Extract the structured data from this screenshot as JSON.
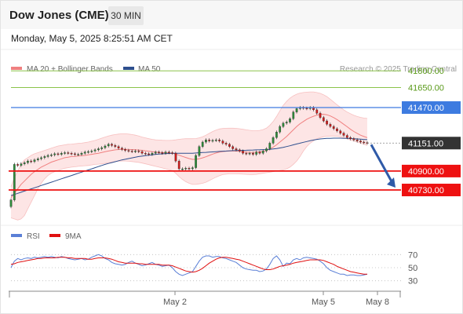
{
  "header": {
    "title": "Dow Jones (CME)",
    "timeframe": "30 MIN",
    "timestamp": "Monday, May 5, 2025 8:25:51 AM CET"
  },
  "colors": {
    "bollinger": "#f08080",
    "bollinger_fill": "#fde0e0",
    "ma50": "#2e4f8e",
    "resistance": "#8bc34a",
    "pivot": "#3d7be0",
    "support": "#ee1111",
    "last_price": "#333333",
    "arrow": "#2f5aa8",
    "rsi": "#5a7fd6",
    "rsi_ma": "#e01010",
    "candle_up": "#2e8b3a",
    "candle_down": "#d01b1b"
  },
  "chart_data": [
    {
      "type": "candlestick",
      "legend": [
        {
          "label": "MA 20 + Bollinger Bands",
          "color": "#f08080"
        },
        {
          "label": "MA 50",
          "color": "#2e4f8e"
        }
      ],
      "source": "Research © 2025 Trading Central",
      "ylim": [
        40420,
        41900
      ],
      "levels": [
        {
          "label": "41800.00",
          "value": 41800,
          "kind": "resistance"
        },
        {
          "label": "41650.00",
          "value": 41650,
          "kind": "resistance"
        },
        {
          "label": "41470.00",
          "value": 41470,
          "kind": "pivot"
        },
        {
          "label": "41151.00",
          "value": 41151,
          "kind": "last"
        },
        {
          "label": "40900.00",
          "value": 40900,
          "kind": "support"
        },
        {
          "label": "40730.00",
          "value": 40730,
          "kind": "support"
        }
      ],
      "x_ticks": [
        "May 2",
        "May 5",
        "May 8"
      ],
      "close_series": [
        40640,
        40960,
        40950,
        40965,
        40975,
        40990,
        40985,
        41000,
        41010,
        41020,
        41030,
        41040,
        41045,
        41055,
        41050,
        41060,
        41065,
        41060,
        41055,
        41050,
        41050,
        41060,
        41070,
        41075,
        41080,
        41090,
        41100,
        41110,
        41125,
        41140,
        41130,
        41120,
        41105,
        41095,
        41085,
        41080,
        41075,
        41080,
        41075,
        41060,
        41055,
        41050,
        41060,
        41070,
        41065,
        41060,
        41070,
        41065,
        41060,
        40990,
        40920,
        40920,
        40925,
        40920,
        40930,
        41040,
        41120,
        41160,
        41180,
        41170,
        41175,
        41180,
        41170,
        41150,
        41140,
        41120,
        41100,
        41090,
        41080,
        41060,
        41055,
        41060,
        41050,
        41070,
        41060,
        41080,
        41100,
        41150,
        41200,
        41250,
        41300,
        41330,
        41340,
        41370,
        41430,
        41460,
        41470,
        41465,
        41460,
        41470,
        41450,
        41420,
        41380,
        41350,
        41320,
        41300,
        41280,
        41260,
        41240,
        41220,
        41200,
        41190,
        41180,
        41170,
        41160,
        41155,
        41151
      ],
      "ma20_series": [
        40660,
        40700,
        40740,
        40780,
        40810,
        40840,
        40870,
        40895,
        40915,
        40935,
        40950,
        40965,
        40980,
        40990,
        41000,
        41010,
        41020,
        41025,
        41030,
        41032,
        41035,
        41038,
        41040,
        41045,
        41050,
        41055,
        41060,
        41066,
        41073,
        41080,
        41085,
        41090,
        41093,
        41095,
        41095,
        41094,
        41093,
        41091,
        41089,
        41086,
        41082,
        41078,
        41074,
        41071,
        41068,
        41066,
        41064,
        41062,
        41060,
        41052,
        41042,
        41032,
        41022,
        41012,
        41005,
        41005,
        41010,
        41018,
        41028,
        41040,
        41052,
        41062,
        41070,
        41075,
        41078,
        41080,
        41080,
        41079,
        41077,
        41074,
        41070,
        41068,
        41067,
        41069,
        41072,
        41076,
        41084,
        41098,
        41115,
        41135,
        41160,
        41185,
        41210,
        41240,
        41270,
        41300,
        41325,
        41345,
        41365,
        41380,
        41392,
        41402,
        41408,
        41410,
        41405,
        41395,
        41380,
        41362,
        41342,
        41320,
        41298,
        41275,
        41255,
        41238,
        41222,
        41210,
        41200
      ],
      "upper_band": [
        40760,
        40840,
        40900,
        40960,
        41000,
        41020,
        41040,
        41055,
        41065,
        41075,
        41085,
        41095,
        41105,
        41115,
        41125,
        41130,
        41135,
        41140,
        41142,
        41145,
        41148,
        41150,
        41155,
        41160,
        41168,
        41175,
        41185,
        41195,
        41205,
        41215,
        41222,
        41228,
        41232,
        41235,
        41235,
        41232,
        41228,
        41222,
        41215,
        41205,
        41198,
        41190,
        41185,
        41180,
        41178,
        41176,
        41175,
        41175,
        41176,
        41180,
        41185,
        41188,
        41190,
        41190,
        41190,
        41192,
        41198,
        41208,
        41222,
        41238,
        41255,
        41268,
        41278,
        41282,
        41284,
        41285,
        41285,
        41283,
        41280,
        41275,
        41270,
        41266,
        41262,
        41262,
        41265,
        41272,
        41285,
        41310,
        41345,
        41390,
        41440,
        41490,
        41525,
        41555,
        41575,
        41590,
        41600,
        41605,
        41608,
        41610,
        41610,
        41605,
        41598,
        41585,
        41568,
        41545,
        41520,
        41495,
        41472,
        41450,
        41430,
        41415,
        41400,
        41390,
        41382,
        41376,
        41372
      ],
      "lower_band": [
        40480,
        40470,
        40460,
        40470,
        40500,
        40560,
        40620,
        40680,
        40740,
        40790,
        40830,
        40860,
        40880,
        40895,
        40905,
        40915,
        40925,
        40930,
        40935,
        40938,
        40942,
        40945,
        40948,
        40950,
        40955,
        40960,
        40962,
        40965,
        40970,
        40975,
        40980,
        40985,
        40988,
        40990,
        40990,
        40988,
        40985,
        40982,
        40978,
        40972,
        40965,
        40958,
        40950,
        40942,
        40935,
        40928,
        40920,
        40912,
        40905,
        40880,
        40850,
        40825,
        40805,
        40790,
        40780,
        40780,
        40785,
        40790,
        40800,
        40815,
        40830,
        40845,
        40858,
        40868,
        40872,
        40875,
        40875,
        40875,
        40874,
        40872,
        40870,
        40868,
        40868,
        40870,
        40875,
        40880,
        40885,
        40890,
        40895,
        40900,
        40905,
        40910,
        40920,
        40935,
        40960,
        40990,
        41030,
        41080,
        41120,
        41150,
        41170,
        41190,
        41200,
        41208,
        41212,
        41214,
        41214,
        41212,
        41208,
        41200,
        41190,
        41180,
        41170,
        41160,
        41150,
        41140,
        41130
      ],
      "ma50_series": [
        40680,
        40690,
        40700,
        40710,
        40720,
        40730,
        40740,
        40750,
        40760,
        40770,
        40780,
        40790,
        40800,
        40810,
        40820,
        40830,
        40840,
        40850,
        40860,
        40870,
        40880,
        40890,
        40900,
        40910,
        40920,
        40930,
        40940,
        40950,
        40960,
        40968,
        40976,
        40984,
        40992,
        41000,
        41006,
        41012,
        41018,
        41024,
        41030,
        41034,
        41038,
        41042,
        41046,
        41050,
        41052,
        41054,
        41056,
        41058,
        41060,
        41060,
        41060,
        41060,
        41060,
        41060,
        41060,
        41062,
        41064,
        41066,
        41068,
        41070,
        41072,
        41074,
        41076,
        41078,
        41080,
        41082,
        41083,
        41084,
        41085,
        41086,
        41087,
        41088,
        41089,
        41090,
        41091,
        41092,
        41093,
        41095,
        41098,
        41102,
        41107,
        41113,
        41120,
        41127,
        41135,
        41143,
        41150,
        41158,
        41165,
        41172,
        41178,
        41184,
        41188,
        41191,
        41193,
        41194,
        41195,
        41195,
        41195,
        41194,
        41193,
        41192,
        41190,
        41188,
        41186,
        41184,
        41182
      ]
    },
    {
      "type": "line",
      "legend": [
        {
          "label": "RSI",
          "color": "#5a7fd6"
        },
        {
          "label": "9MA",
          "color": "#e01010"
        }
      ],
      "ylim": [
        20,
        80
      ],
      "levels": [
        {
          "label": "70",
          "value": 70
        },
        {
          "label": "50",
          "value": 50
        },
        {
          "label": "30",
          "value": 30
        }
      ],
      "rsi_series": [
        50,
        60,
        64,
        62,
        64,
        65,
        64,
        66,
        65,
        66,
        67,
        66,
        67,
        66,
        65,
        67,
        66,
        64,
        63,
        62,
        63,
        64,
        62,
        63,
        66,
        68,
        70,
        68,
        64,
        62,
        58,
        56,
        55,
        54,
        55,
        58,
        60,
        57,
        55,
        53,
        54,
        56,
        58,
        55,
        54,
        52,
        53,
        54,
        50,
        44,
        40,
        38,
        40,
        42,
        44,
        52,
        60,
        66,
        68,
        68,
        66,
        67,
        67,
        65,
        64,
        62,
        60,
        58,
        54,
        50,
        48,
        47,
        46,
        46,
        44,
        45,
        48,
        55,
        64,
        68,
        62,
        52,
        57,
        56,
        62,
        64,
        62,
        65,
        66,
        65,
        64,
        63,
        60,
        56,
        50,
        46,
        44,
        42,
        40,
        40,
        38,
        39,
        39,
        38,
        38,
        39,
        40
      ],
      "rsi_ma_series": [
        55,
        56,
        58,
        59,
        60,
        61,
        62,
        63,
        64,
        64,
        65,
        65,
        65,
        65,
        66,
        66,
        66,
        65,
        65,
        64,
        64,
        64,
        64,
        63,
        63,
        64,
        65,
        65,
        65,
        64,
        63,
        61,
        59,
        58,
        57,
        57,
        57,
        57,
        56,
        56,
        55,
        55,
        55,
        55,
        55,
        54,
        54,
        54,
        53,
        51,
        49,
        47,
        45,
        44,
        43,
        44,
        46,
        49,
        53,
        57,
        60,
        63,
        65,
        66,
        66,
        65,
        64,
        63,
        62,
        60,
        58,
        56,
        54,
        52,
        50,
        48,
        47,
        47,
        48,
        50,
        52,
        53,
        54,
        55,
        57,
        58,
        59,
        60,
        61,
        62,
        62,
        62,
        62,
        61,
        59,
        57,
        55,
        52,
        50,
        48,
        46,
        44,
        43,
        42,
        41,
        40,
        40
      ]
    }
  ]
}
